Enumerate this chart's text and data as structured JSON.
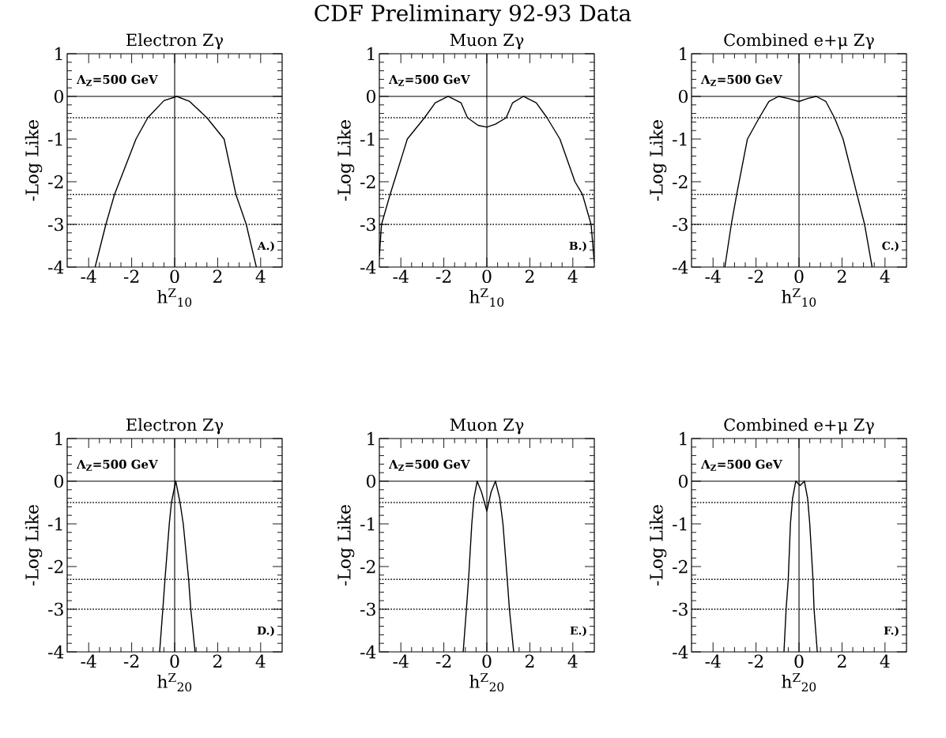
{
  "chart_data": [
    {
      "type": "line",
      "title": "Electron Zγ",
      "xlabel": "h$^{Z}$$_{10}$",
      "ylabel": "-Log Like",
      "xlim": [
        -5,
        5
      ],
      "ylim": [
        -4,
        1
      ],
      "xticks": [
        -4,
        -2,
        0,
        2,
        4
      ],
      "yticks": [
        -4,
        -3,
        -2,
        -1,
        0,
        1
      ],
      "color": "#000000",
      "x": [
        -3.7,
        -3.2,
        -2.8,
        -1.8,
        -1.25,
        -0.5,
        0.1,
        0.7,
        1.5,
        2.3,
        2.85,
        3.33,
        3.8
      ],
      "values": [
        -4,
        -3,
        -2.3,
        -1,
        -0.5,
        -0.1,
        0,
        -0.12,
        -0.5,
        -1,
        -2.3,
        -3,
        -4
      ],
      "ref_lines": [
        {
          "axis": "y",
          "value": 0,
          "line_style": "solid"
        },
        {
          "axis": "y",
          "value": -0.5,
          "line_style": "dotted"
        },
        {
          "axis": "y",
          "value": -2.3,
          "line_style": "dotted"
        },
        {
          "axis": "y",
          "value": -3,
          "line_style": "dotted"
        },
        {
          "axis": "x",
          "value": 0,
          "line_style": "solid"
        }
      ],
      "annotations": [
        "CDF Preliminary 92-93 Data",
        "Λ$_{Z}$=500 GeV",
        "A.)"
      ]
    },
    {
      "type": "line",
      "title": "Muon Zγ",
      "xlabel": "h$^{Z}$$_{10}$",
      "ylabel": "-Log Like",
      "xlim": [
        -5,
        5
      ],
      "ylim": [
        -4,
        1
      ],
      "xticks": [
        -4,
        -2,
        0,
        2,
        4
      ],
      "yticks": [
        -4,
        -3,
        -2,
        -1,
        0,
        1
      ],
      "color": "#000000",
      "x": [
        -5,
        -4.9,
        -4.5,
        -3.7,
        -2.9,
        -2.4,
        -1.8,
        -1.2,
        -0.9,
        -0.4,
        0,
        0.4,
        0.9,
        1.2,
        1.7,
        2.3,
        2.8,
        3.4,
        4.1,
        4.45,
        4.85,
        5
      ],
      "values": [
        -3.75,
        -3,
        -2.3,
        -1,
        -0.5,
        -0.15,
        0,
        -0.15,
        -0.5,
        -0.68,
        -0.72,
        -0.65,
        -0.5,
        -0.15,
        0,
        -0.15,
        -0.5,
        -1,
        -2,
        -2.3,
        -3,
        -3.9
      ],
      "ref_lines": [
        {
          "axis": "y",
          "value": 0,
          "line_style": "solid"
        },
        {
          "axis": "y",
          "value": -0.5,
          "line_style": "dotted"
        },
        {
          "axis": "y",
          "value": -2.3,
          "line_style": "dotted"
        },
        {
          "axis": "y",
          "value": -3,
          "line_style": "dotted"
        },
        {
          "axis": "x",
          "value": 0,
          "line_style": "solid"
        }
      ],
      "annotations": [
        "Λ$_{Z}$=500 GeV",
        "B.)"
      ]
    },
    {
      "type": "line",
      "title": "Combined e+μ Zγ",
      "xlabel": "h$^{Z}$$_{10}$",
      "ylabel": "-Log Like",
      "xlim": [
        -5,
        5
      ],
      "ylim": [
        -4,
        1
      ],
      "xticks": [
        -4,
        -2,
        0,
        2,
        4
      ],
      "yticks": [
        -4,
        -3,
        -2,
        -1,
        0,
        1
      ],
      "color": "#000000",
      "x": [
        -3.45,
        -3.15,
        -2.9,
        -2.4,
        -1.85,
        -1.4,
        -0.95,
        -0.5,
        0,
        0.4,
        0.8,
        1.25,
        1.65,
        2.05,
        2.7,
        3.05,
        3.4
      ],
      "values": [
        -4,
        -3,
        -2.3,
        -1,
        -0.5,
        -0.12,
        0,
        -0.05,
        -0.12,
        -0.05,
        0,
        -0.12,
        -0.5,
        -1,
        -2.3,
        -3,
        -4
      ],
      "ref_lines": [
        {
          "axis": "y",
          "value": 0,
          "line_style": "solid"
        },
        {
          "axis": "y",
          "value": -0.5,
          "line_style": "dotted"
        },
        {
          "axis": "y",
          "value": -2.3,
          "line_style": "dotted"
        },
        {
          "axis": "y",
          "value": -3,
          "line_style": "dotted"
        },
        {
          "axis": "x",
          "value": 0,
          "line_style": "solid"
        }
      ],
      "annotations": [
        "Λ$_{Z}$=500 GeV",
        "C.)"
      ]
    },
    {
      "type": "line",
      "title": "Electron Zγ",
      "xlabel": "h$^{Z}$$_{20}$",
      "ylabel": "-Log Like",
      "xlim": [
        -5,
        5
      ],
      "ylim": [
        -4,
        1
      ],
      "xticks": [
        -4,
        -2,
        0,
        2,
        4
      ],
      "yticks": [
        -4,
        -3,
        -2,
        -1,
        0,
        1
      ],
      "color": "#000000",
      "x": [
        -0.7,
        -0.55,
        -0.45,
        -0.25,
        -0.15,
        0.05,
        0.25,
        0.4,
        0.65,
        0.75,
        0.95
      ],
      "values": [
        -4,
        -3,
        -2.3,
        -1,
        -0.5,
        0,
        -0.5,
        -1,
        -2.3,
        -3,
        -4
      ],
      "ref_lines": [
        {
          "axis": "y",
          "value": 0,
          "line_style": "solid"
        },
        {
          "axis": "y",
          "value": -0.5,
          "line_style": "dotted"
        },
        {
          "axis": "y",
          "value": -2.3,
          "line_style": "dotted"
        },
        {
          "axis": "y",
          "value": -3,
          "line_style": "dotted"
        },
        {
          "axis": "x",
          "value": 0,
          "line_style": "solid"
        }
      ],
      "annotations": [
        "Λ$_{Z}$=500 GeV",
        "D.)"
      ]
    },
    {
      "type": "line",
      "title": "Muon Zγ",
      "xlabel": "h$^{Z}$$_{20}$",
      "ylabel": "-Log Like",
      "xlim": [
        -5,
        5
      ],
      "ylim": [
        -4,
        1
      ],
      "xticks": [
        -4,
        -2,
        0,
        2,
        4
      ],
      "yticks": [
        -4,
        -3,
        -2,
        -1,
        0,
        1
      ],
      "color": "#000000",
      "x": [
        -1.1,
        -0.95,
        -0.85,
        -0.7,
        -0.6,
        -0.45,
        -0.25,
        0,
        0.2,
        0.4,
        0.6,
        0.75,
        0.95,
        1.05,
        1.25
      ],
      "values": [
        -4,
        -3,
        -2.3,
        -1,
        -0.4,
        0,
        -0.25,
        -0.7,
        -0.25,
        0,
        -0.4,
        -1,
        -2.3,
        -3,
        -4
      ],
      "ref_lines": [
        {
          "axis": "y",
          "value": 0,
          "line_style": "solid"
        },
        {
          "axis": "y",
          "value": -0.5,
          "line_style": "dotted"
        },
        {
          "axis": "y",
          "value": -2.3,
          "line_style": "dotted"
        },
        {
          "axis": "y",
          "value": -3,
          "line_style": "dotted"
        },
        {
          "axis": "x",
          "value": 0,
          "line_style": "solid"
        }
      ],
      "annotations": [
        "Λ$_{Z}$=500 GeV",
        "E.)"
      ]
    },
    {
      "type": "line",
      "title": "Combined e+μ Zγ",
      "xlabel": "h$^{Z}$$_{20}$",
      "ylabel": "-Log Like",
      "xlim": [
        -5,
        5
      ],
      "ylim": [
        -4,
        1
      ],
      "xticks": [
        -4,
        -2,
        0,
        2,
        4
      ],
      "yticks": [
        -4,
        -3,
        -2,
        -1,
        0,
        1
      ],
      "color": "#000000",
      "x": [
        -0.7,
        -0.6,
        -0.5,
        -0.4,
        -0.3,
        -0.15,
        0.05,
        0.25,
        0.4,
        0.5,
        0.65,
        0.7,
        0.85
      ],
      "values": [
        -4,
        -3,
        -2.3,
        -1,
        -0.4,
        0,
        -0.1,
        0,
        -0.4,
        -1,
        -2.3,
        -3,
        -4
      ],
      "ref_lines": [
        {
          "axis": "y",
          "value": 0,
          "line_style": "solid"
        },
        {
          "axis": "y",
          "value": -0.5,
          "line_style": "dotted"
        },
        {
          "axis": "y",
          "value": -2.3,
          "line_style": "dotted"
        },
        {
          "axis": "y",
          "value": -3,
          "line_style": "dotted"
        },
        {
          "axis": "x",
          "value": 0,
          "line_style": "solid"
        }
      ],
      "annotations": [
        "Λ$_{Z}$=500 GeV",
        "F.)"
      ]
    }
  ]
}
